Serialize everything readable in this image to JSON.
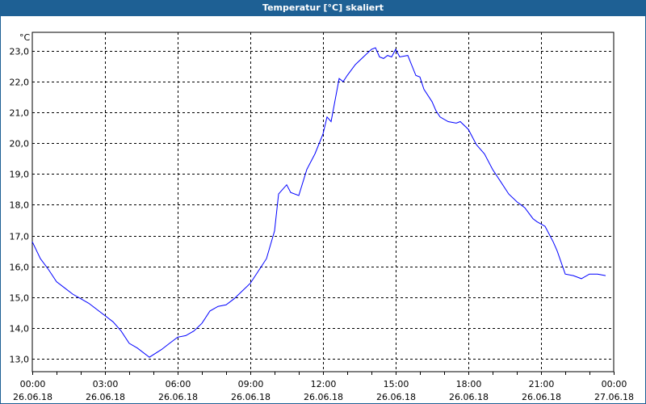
{
  "window": {
    "title": "Temperatur [°C] skaliert"
  },
  "chart_data": {
    "type": "line",
    "title": "Temperatur [°C] skaliert",
    "ylabel": "°C",
    "xlabel": "",
    "ylim": [
      12.58,
      23.6
    ],
    "xlim": [
      "00:00 26.06.18",
      "00:00 27.06.18"
    ],
    "grid": true,
    "line_color": "#0000ff",
    "y_ticks": [
      "13,0",
      "14,0",
      "15,0",
      "16,0",
      "17,0",
      "18,0",
      "19,0",
      "20,0",
      "21,0",
      "22,0",
      "23,0"
    ],
    "x_ticks": [
      {
        "time": "00:00",
        "date": "26.06.18"
      },
      {
        "time": "03:00",
        "date": "26.06.18"
      },
      {
        "time": "06:00",
        "date": "26.06.18"
      },
      {
        "time": "09:00",
        "date": "26.06.18"
      },
      {
        "time": "12:00",
        "date": "26.06.18"
      },
      {
        "time": "15:00",
        "date": "26.06.18"
      },
      {
        "time": "18:00",
        "date": "26.06.18"
      },
      {
        "time": "21:00",
        "date": "26.06.18"
      },
      {
        "time": "00:00",
        "date": "27.06.18"
      }
    ],
    "series": [
      {
        "x": [
          "00:00",
          "00:20",
          "00:40",
          "01:00",
          "01:20",
          "01:40",
          "02:00",
          "02:20",
          "02:40",
          "03:00",
          "03:20",
          "03:40",
          "04:00",
          "04:20",
          "04:50",
          "05:20",
          "05:40",
          "06:00",
          "06:20",
          "06:40",
          "07:00",
          "07:20",
          "07:40",
          "08:00",
          "08:20",
          "08:40",
          "09:00",
          "09:20",
          "09:40",
          "10:00",
          "10:10",
          "10:30",
          "10:40",
          "11:00",
          "11:20",
          "11:40",
          "12:00",
          "12:10",
          "12:20",
          "12:40",
          "12:50",
          "13:00",
          "13:20",
          "13:40",
          "14:00",
          "14:10",
          "14:20",
          "14:30",
          "14:40",
          "14:50",
          "15:00",
          "15:10",
          "15:30",
          "15:50",
          "16:00",
          "16:10",
          "16:30",
          "16:40",
          "16:50",
          "17:10",
          "17:30",
          "17:40",
          "18:00",
          "18:20",
          "18:40",
          "19:00",
          "19:20",
          "19:40",
          "20:00",
          "20:20",
          "20:40",
          "20:50",
          "21:10",
          "21:30",
          "21:40",
          "22:00",
          "22:20",
          "22:40",
          "23:00",
          "23:20",
          "23:40"
        ],
        "y": [
          16.8,
          16.25,
          15.9,
          15.5,
          15.3,
          15.1,
          14.95,
          14.8,
          14.6,
          14.4,
          14.2,
          13.9,
          13.5,
          13.35,
          13.05,
          13.3,
          13.5,
          13.7,
          13.75,
          13.9,
          14.15,
          14.55,
          14.7,
          14.75,
          14.95,
          15.2,
          15.45,
          15.85,
          16.25,
          17.15,
          18.35,
          18.65,
          18.4,
          18.3,
          19.15,
          19.65,
          20.3,
          20.85,
          20.7,
          22.1,
          22.0,
          22.2,
          22.55,
          22.8,
          23.05,
          23.1,
          22.8,
          22.75,
          22.85,
          22.8,
          23.05,
          22.8,
          22.85,
          22.2,
          22.15,
          21.75,
          21.35,
          21.05,
          20.85,
          20.7,
          20.65,
          20.7,
          20.45,
          19.95,
          19.65,
          19.15,
          18.75,
          18.35,
          18.1,
          17.9,
          17.55,
          17.45,
          17.3,
          16.8,
          16.5,
          15.75,
          15.7,
          15.6,
          15.75,
          15.75,
          15.7
        ]
      }
    ]
  }
}
